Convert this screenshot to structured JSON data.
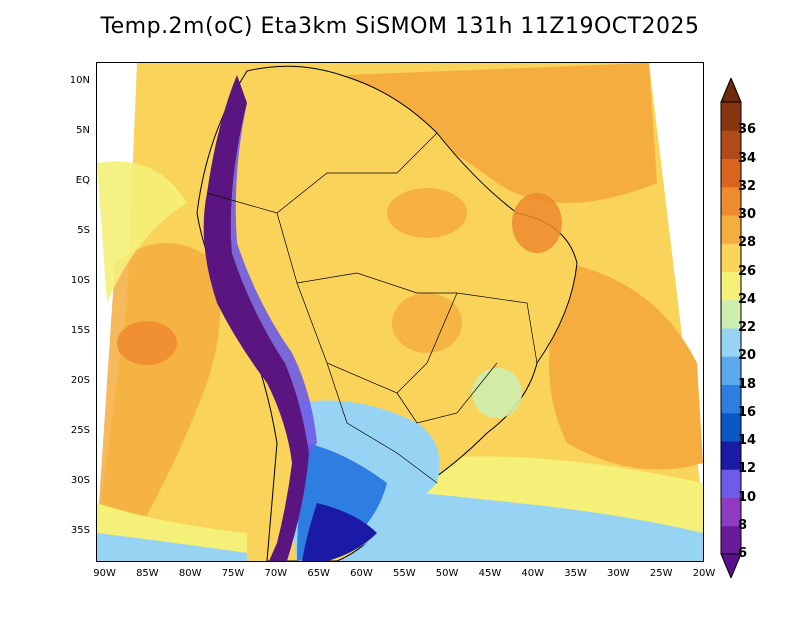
{
  "title": "Temp.2m(oC) Eta3km SiSMOM 131h 11Z19OCT2025",
  "map": {
    "lat_ticks": [
      {
        "label": "10N",
        "lat": 10
      },
      {
        "label": "5N",
        "lat": 5
      },
      {
        "label": "EQ",
        "lat": 0
      },
      {
        "label": "5S",
        "lat": -5
      },
      {
        "label": "10S",
        "lat": -10
      },
      {
        "label": "15S",
        "lat": -15
      },
      {
        "label": "20S",
        "lat": -20
      },
      {
        "label": "25S",
        "lat": -25
      },
      {
        "label": "30S",
        "lat": -30
      },
      {
        "label": "35S",
        "lat": -35
      }
    ],
    "lon_ticks": [
      {
        "label": "90W",
        "lon": -90
      },
      {
        "label": "85W",
        "lon": -85
      },
      {
        "label": "80W",
        "lon": -80
      },
      {
        "label": "75W",
        "lon": -75
      },
      {
        "label": "70W",
        "lon": -70
      },
      {
        "label": "65W",
        "lon": -65
      },
      {
        "label": "60W",
        "lon": -60
      },
      {
        "label": "55W",
        "lon": -55
      },
      {
        "label": "50W",
        "lon": -50
      },
      {
        "label": "45W",
        "lon": -45
      },
      {
        "label": "40W",
        "lon": -40
      },
      {
        "label": "35W",
        "lon": -35
      },
      {
        "label": "30W",
        "lon": -30
      },
      {
        "label": "25W",
        "lon": -25
      },
      {
        "label": "20W",
        "lon": -20
      }
    ],
    "lon_range": [
      -91,
      -20
    ],
    "lat_range": [
      -38,
      12
    ]
  },
  "colorbar": {
    "unit": "oC",
    "labels": [
      "6",
      "8",
      "10",
      "12",
      "14",
      "16",
      "18",
      "20",
      "22",
      "24",
      "26",
      "28",
      "30",
      "32",
      "34",
      "36"
    ],
    "colors": {
      "below": "#5a0f8c",
      "above": "#6e2a0c",
      "steps": [
        "#6a1b9a",
        "#8e3ac2",
        "#6c5ce7",
        "#1a1aa6",
        "#0b57c5",
        "#2e7de0",
        "#5aa9ee",
        "#97d4f4",
        "#cdeeb0",
        "#f5f078",
        "#f9d35a",
        "#f5ad3f",
        "#ee8a30",
        "#d9641e",
        "#b04a16",
        "#8a3512"
      ]
    }
  },
  "palette": {
    "ocean_warm": "#f5ad3f",
    "ocean_mild": "#f9d35a",
    "ocean_cool": "#f5f078",
    "ocean_cold": "#97d4f4",
    "land_base": "#f9d35a",
    "andes": "#5a1580"
  }
}
